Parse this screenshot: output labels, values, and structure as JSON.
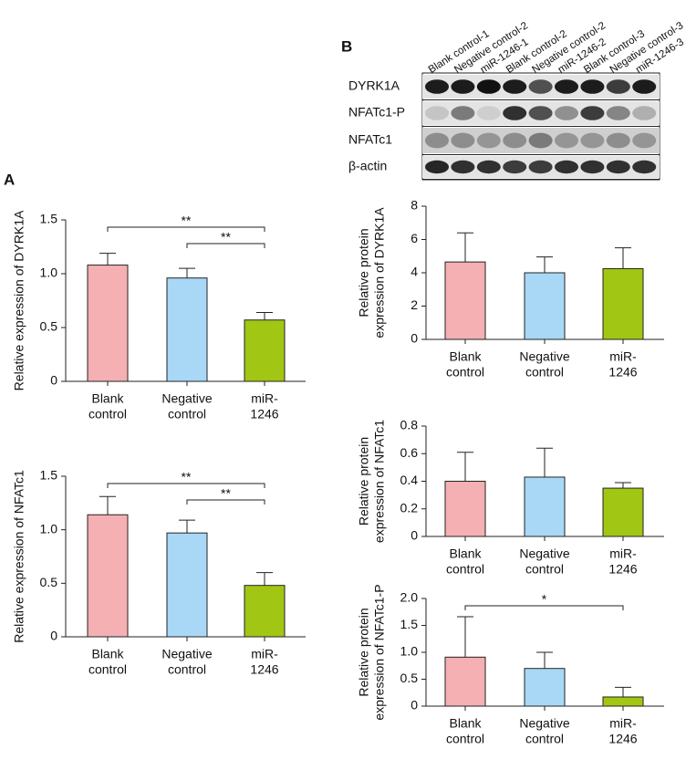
{
  "panel_labels": [
    "A",
    "B"
  ],
  "blot": {
    "lanes": [
      "Blank control-1",
      "Negative control-2",
      "miR-1246-1",
      "Blank control-2",
      "Negative control-2",
      "miR-1246-2",
      "Blank control-3",
      "Negative control-3",
      "miR-1246-3"
    ],
    "proteins": [
      "DYRK1A",
      "NFATc1-P",
      "NFATc1",
      "β-actin"
    ]
  },
  "chart_data": [
    {
      "type": "bar",
      "ylabel": [
        "Relative expression of DYRK1A"
      ],
      "categories": [
        [
          "Blank",
          "control"
        ],
        [
          "Negative",
          "control"
        ],
        [
          "miR-",
          "1246"
        ]
      ],
      "values": [
        1.08,
        0.96,
        0.57
      ],
      "errors": [
        0.11,
        0.09,
        0.07
      ],
      "colors": [
        "#f4b0b3",
        "#a8d8f5",
        "#a2c614"
      ],
      "ylim": [
        0,
        1.5
      ],
      "yticks": [
        0,
        0.5,
        {
          "value": 1,
          "label": "1.0"
        },
        1.5
      ],
      "annotations": [
        {
          "text": "**",
          "from": 0,
          "to": 2
        },
        {
          "text": "**",
          "from": 1,
          "to": 2
        }
      ]
    },
    {
      "type": "bar",
      "ylabel": [
        "Relative expression of NFATc1"
      ],
      "categories": [
        [
          "Blank",
          "control"
        ],
        [
          "Negative",
          "control"
        ],
        [
          "miR-",
          "1246"
        ]
      ],
      "values": [
        1.14,
        0.97,
        0.48
      ],
      "errors": [
        0.17,
        0.12,
        0.12
      ],
      "colors": [
        "#f4b0b3",
        "#a8d8f5",
        "#a2c614"
      ],
      "ylim": [
        0,
        1.5
      ],
      "yticks": [
        0,
        0.5,
        {
          "value": 1,
          "label": "1.0"
        },
        1.5
      ],
      "annotations": [
        {
          "text": "**",
          "from": 0,
          "to": 2
        },
        {
          "text": "**",
          "from": 1,
          "to": 2
        }
      ]
    },
    {
      "type": "bar",
      "ylabel": [
        "Relative protein",
        "expression of DYRK1A"
      ],
      "categories": [
        [
          "Blank",
          "control"
        ],
        [
          "Negative",
          "control"
        ],
        [
          "miR-",
          "1246"
        ]
      ],
      "values": [
        4.65,
        4.0,
        4.25
      ],
      "errors": [
        1.75,
        0.95,
        1.25
      ],
      "colors": [
        "#f4b0b3",
        "#a8d8f5",
        "#a2c614"
      ],
      "ylim": [
        0,
        8
      ],
      "yticks": [
        0,
        2,
        4,
        6,
        8
      ]
    },
    {
      "type": "bar",
      "ylabel": [
        "Relative protein",
        "expression of NFATc1"
      ],
      "categories": [
        [
          "Blank",
          "control"
        ],
        [
          "Negative",
          "control"
        ],
        [
          "miR-",
          "1246"
        ]
      ],
      "values": [
        0.4,
        0.43,
        0.35
      ],
      "errors": [
        0.21,
        0.21,
        0.04
      ],
      "colors": [
        "#f4b0b3",
        "#a8d8f5",
        "#a2c614"
      ],
      "ylim": [
        0,
        0.8
      ],
      "yticks": [
        0,
        0.2,
        0.4,
        0.6,
        0.8
      ]
    },
    {
      "type": "bar",
      "ylabel": [
        "Relative protein",
        "expression of NFATc1-P"
      ],
      "categories": [
        [
          "Blank",
          "control"
        ],
        [
          "Negative",
          "control"
        ],
        [
          "miR-",
          "1246"
        ]
      ],
      "values": [
        0.91,
        0.7,
        0.17
      ],
      "errors": [
        0.75,
        0.3,
        0.18
      ],
      "colors": [
        "#f4b0b3",
        "#a8d8f5",
        "#a2c614"
      ],
      "ylim": [
        0,
        2
      ],
      "yticks": [
        0,
        0.5,
        {
          "value": 1,
          "label": "1.0"
        },
        1.5,
        {
          "value": 2,
          "label": "2.0"
        }
      ],
      "annotations": [
        {
          "text": "*",
          "from": 0,
          "to": 2
        }
      ]
    }
  ]
}
